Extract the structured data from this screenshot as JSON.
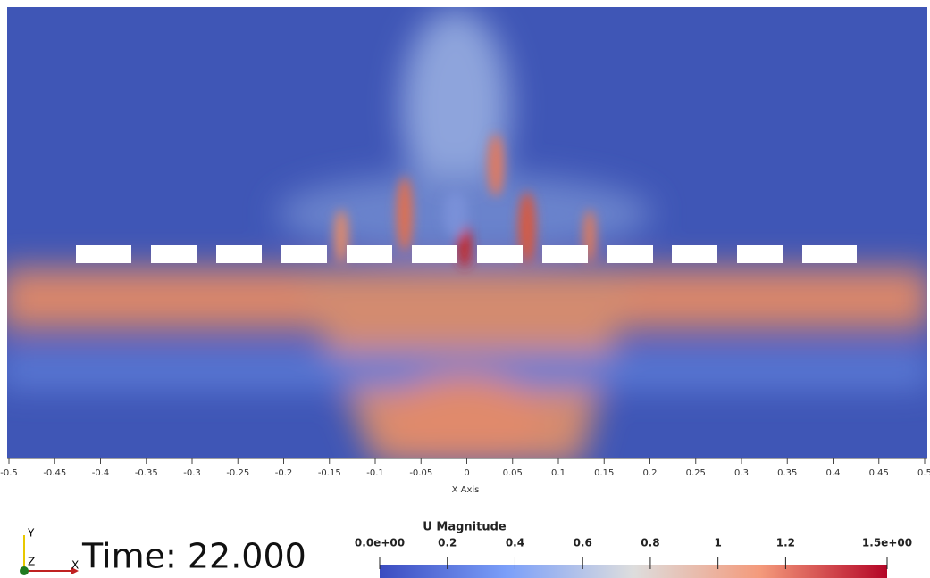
{
  "x_axis": {
    "title": "X Axis",
    "range": [
      -0.5,
      0.5
    ],
    "ticks": [
      -0.5,
      -0.45,
      -0.4,
      -0.35,
      -0.3,
      -0.25,
      -0.2,
      -0.15,
      -0.1,
      -0.05,
      0,
      0.05,
      0.1,
      0.15,
      0.2,
      0.25,
      0.3,
      0.35,
      0.4,
      0.45,
      0.5
    ]
  },
  "colorbar": {
    "title": "U Magnitude",
    "range": [
      0,
      1.5
    ],
    "ticks": [
      {
        "value": 0,
        "label": "0.0e+00"
      },
      0.2,
      0.4,
      0.6,
      0.8,
      1,
      1.2,
      {
        "value": 1.5,
        "label": "1.5e+00"
      }
    ]
  },
  "time_label": "Time: 22.000",
  "triad": {
    "y": "Y",
    "z": "Z",
    "x": "X"
  }
}
